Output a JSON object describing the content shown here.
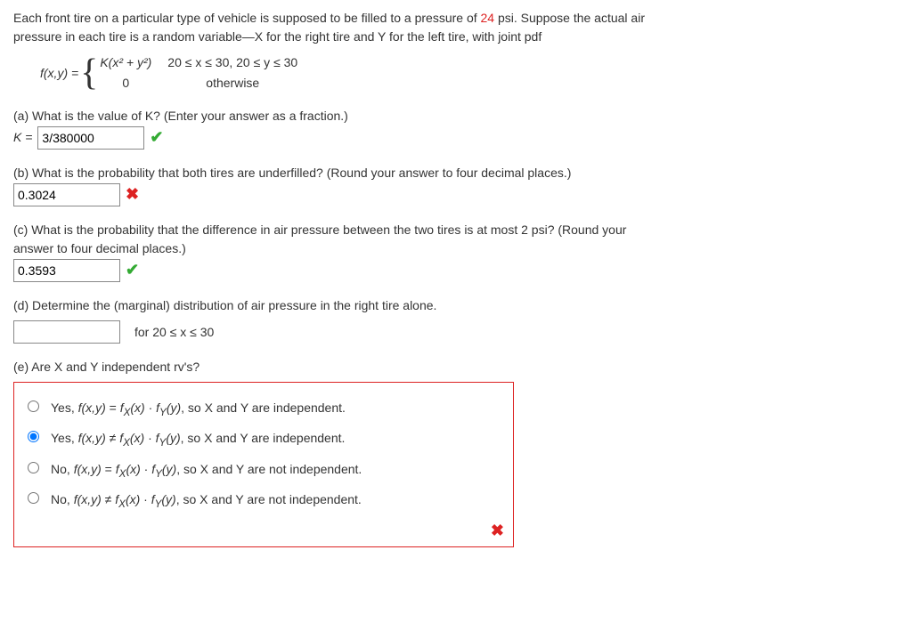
{
  "intro": {
    "line1_a": "Each front tire on a particular type of vehicle is supposed to be filled to a pressure of ",
    "pressure": "24",
    "line1_b": " psi. Suppose the actual air",
    "line2": "pressure in each tire is a random variable—X for the right tire and Y for the left tire, with joint pdf"
  },
  "pdf": {
    "lhs": "f(x,y) = ",
    "case1_expr": "K(x² + y²)",
    "case1_cond": "20 ≤ x ≤ 30, 20 ≤ y ≤ 30",
    "case2_expr": "0",
    "case2_cond": "otherwise"
  },
  "a": {
    "prompt": "(a) What is the value of K? (Enter your answer as a fraction.)",
    "label": "K = ",
    "value": "3/380000",
    "correct": true
  },
  "b": {
    "prompt": "(b) What is the probability that both tires are underfilled? (Round your answer to four decimal places.)",
    "value": "0.3024",
    "correct": false
  },
  "c": {
    "prompt1": "(c) What is the probability that the difference in air pressure between the two tires is at most 2 psi? (Round your",
    "prompt2": "answer to four decimal places.)",
    "value": "0.3593",
    "correct": true
  },
  "d": {
    "prompt": "(d) Determine the (marginal) distribution of air pressure in the right tire alone.",
    "value": "",
    "suffix": "for 20 ≤ x ≤ 30"
  },
  "e": {
    "prompt": "(e) Are X and Y independent rv's?",
    "options": [
      {
        "pre": "Yes, ",
        "rel": " = ",
        "post": ", so X and Y are independent.",
        "selected": false
      },
      {
        "pre": "Yes, ",
        "rel": " ≠ ",
        "post": ", so X and Y are independent.",
        "selected": true
      },
      {
        "pre": "No, ",
        "rel": " = ",
        "post": ", so X and Y are not independent.",
        "selected": false
      },
      {
        "pre": "No, ",
        "rel": " ≠ ",
        "post": ", so X and Y are not independent.",
        "selected": false
      }
    ],
    "correct": false
  },
  "icons": {
    "check": "✔",
    "cross": "✖"
  }
}
